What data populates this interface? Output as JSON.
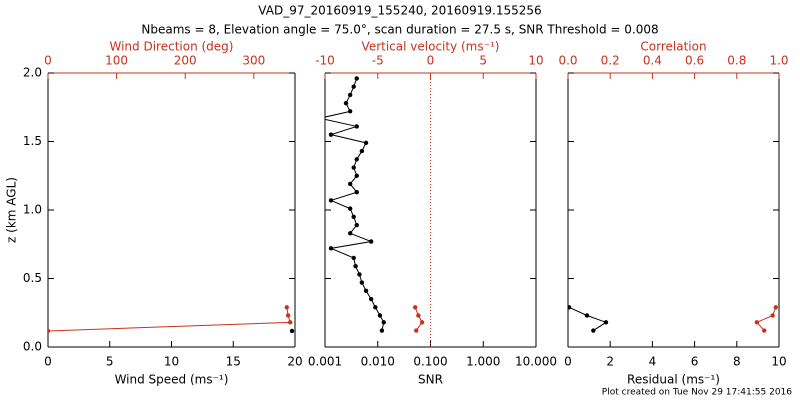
{
  "title": "VAD_97_20160919_155240, 20160919.155256",
  "subtitle": "Nbeams = 8, Elevation angle = 75.0°, scan duration = 27.5 s, SNR Threshold = 0.008",
  "footer": "Plot created on Tue Nov 29 17:41:55 2016",
  "chart_data": [
    {
      "type": "profile",
      "xlabel": "Wind Speed (ms⁻¹)",
      "x2label": "Wind Direction (deg)",
      "ylabel": "z (km AGL)",
      "xlim": [
        0,
        20
      ],
      "xticks": [
        0,
        5,
        10,
        15,
        20
      ],
      "x2lim": [
        0,
        360
      ],
      "x2ticks": [
        0,
        100,
        200,
        300
      ],
      "ylim": [
        0,
        2
      ],
      "yticks": [
        {
          "value": 0,
          "label": "0.0"
        },
        {
          "value": 0.5,
          "label": "0.5"
        },
        {
          "value": 1,
          "label": "1.0"
        },
        {
          "value": 1.5,
          "label": "1.5"
        },
        {
          "value": 2,
          "label": "2.0"
        }
      ],
      "show_ytick_labels": true,
      "series": [
        {
          "color": "#000000",
          "axis": "x",
          "z": [
            0.117
          ],
          "values": [
            19.76
          ]
        },
        {
          "color": "#c8321e",
          "axis": "x2",
          "z": [
            0.117,
            0.18,
            0.23,
            0.29
          ],
          "values": [
            0,
            353,
            350,
            348
          ]
        }
      ]
    },
    {
      "type": "profile",
      "xlabel": "SNR",
      "x2label": "Vertical velocity (ms⁻¹)",
      "xscale": "log",
      "xlim": [
        0.001,
        10
      ],
      "xticks": [
        {
          "value": 0.001,
          "label": "0.001"
        },
        {
          "value": 0.01,
          "label": "0.010"
        },
        {
          "value": 0.1,
          "label": "0.100"
        },
        {
          "value": 1,
          "label": "1.000"
        },
        {
          "value": 10,
          "label": "10.000"
        }
      ],
      "x2lim": [
        -10,
        10
      ],
      "x2ticks": [
        -10,
        -5,
        0,
        5,
        10
      ],
      "x2_zero_line": true,
      "ylim": [
        0,
        2
      ],
      "yticks": [
        0,
        0.5,
        1,
        1.5,
        2
      ],
      "show_ytick_labels": false,
      "series": [
        {
          "color": "#000000",
          "axis": "x",
          "z": [
            0.12,
            0.18,
            0.23,
            0.29,
            0.35,
            0.41,
            0.47,
            0.53,
            0.59,
            0.65,
            0.72,
            0.77,
            0.83,
            0.89,
            0.95,
            1.01,
            1.07,
            1.13,
            1.19,
            1.25,
            1.31,
            1.37,
            1.43,
            1.49,
            1.55,
            1.61,
            1.67,
            1.72,
            1.78,
            1.84,
            1.9,
            1.96
          ],
          "values": [
            0.012,
            0.013,
            0.011,
            0.009,
            0.0075,
            0.006,
            0.005,
            0.0045,
            0.0038,
            0.0035,
            0.0013,
            0.0075,
            0.003,
            0.004,
            0.0035,
            0.003,
            0.0013,
            0.004,
            0.003,
            0.004,
            0.0035,
            0.004,
            0.005,
            0.006,
            0.0013,
            0.004,
            0.0008,
            0.003,
            0.0025,
            0.003,
            0.0035,
            0.004
          ]
        },
        {
          "color": "#c8321e",
          "axis": "x2",
          "z": [
            0.12,
            0.18,
            0.23,
            0.29
          ],
          "values": [
            -1.35,
            -0.8,
            -1.15,
            -1.45
          ]
        }
      ]
    },
    {
      "type": "profile",
      "xlabel": "Residual (ms⁻¹)",
      "x2label": "Correlation",
      "xlim": [
        0,
        10
      ],
      "xticks": [
        0,
        2,
        4,
        6,
        8,
        10
      ],
      "x2lim": [
        0,
        1
      ],
      "x2ticks": [
        {
          "value": 0,
          "label": "0.0"
        },
        {
          "value": 0.2,
          "label": "0.2"
        },
        {
          "value": 0.4,
          "label": "0.4"
        },
        {
          "value": 0.6,
          "label": "0.6"
        },
        {
          "value": 0.8,
          "label": "0.8"
        },
        {
          "value": 1,
          "label": "1.0"
        }
      ],
      "ylim": [
        0,
        2
      ],
      "yticks": [
        0,
        0.5,
        1,
        1.5,
        2
      ],
      "show_ytick_labels": false,
      "series": [
        {
          "color": "#000000",
          "axis": "x",
          "z": [
            0.12,
            0.18,
            0.23,
            0.29
          ],
          "values": [
            1.2,
            1.8,
            0.9,
            0.05
          ]
        },
        {
          "color": "#c8321e",
          "axis": "x2",
          "z": [
            0.12,
            0.18,
            0.23,
            0.29
          ],
          "values": [
            0.93,
            0.895,
            0.97,
            0.985
          ]
        }
      ]
    }
  ]
}
